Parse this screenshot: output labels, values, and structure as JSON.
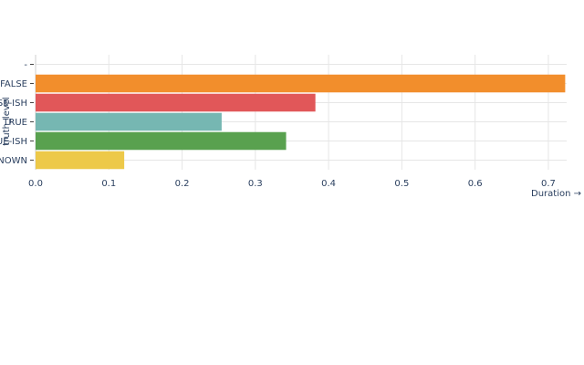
{
  "chart_data": {
    "type": "bar",
    "orientation": "horizontal",
    "xlabel": "Duration →",
    "ylabel": "truth_level",
    "xlim": [
      0,
      0.725
    ],
    "x_ticks": [
      "0.0",
      "0.1",
      "0.2",
      "0.3",
      "0.4",
      "0.5",
      "0.6",
      "0.7"
    ],
    "grid": true,
    "categories": [
      "-",
      "FALSE",
      "FALSE-ISH",
      "TRUE",
      "TRUE-ISH",
      "UNKNOWN"
    ],
    "values": [
      0,
      0.723,
      0.382,
      0.254,
      0.342,
      0.121
    ],
    "colors": [
      "#ffffff",
      "#f28e2c",
      "#e15759",
      "#76b7b2",
      "#59a14f",
      "#edc949"
    ]
  }
}
